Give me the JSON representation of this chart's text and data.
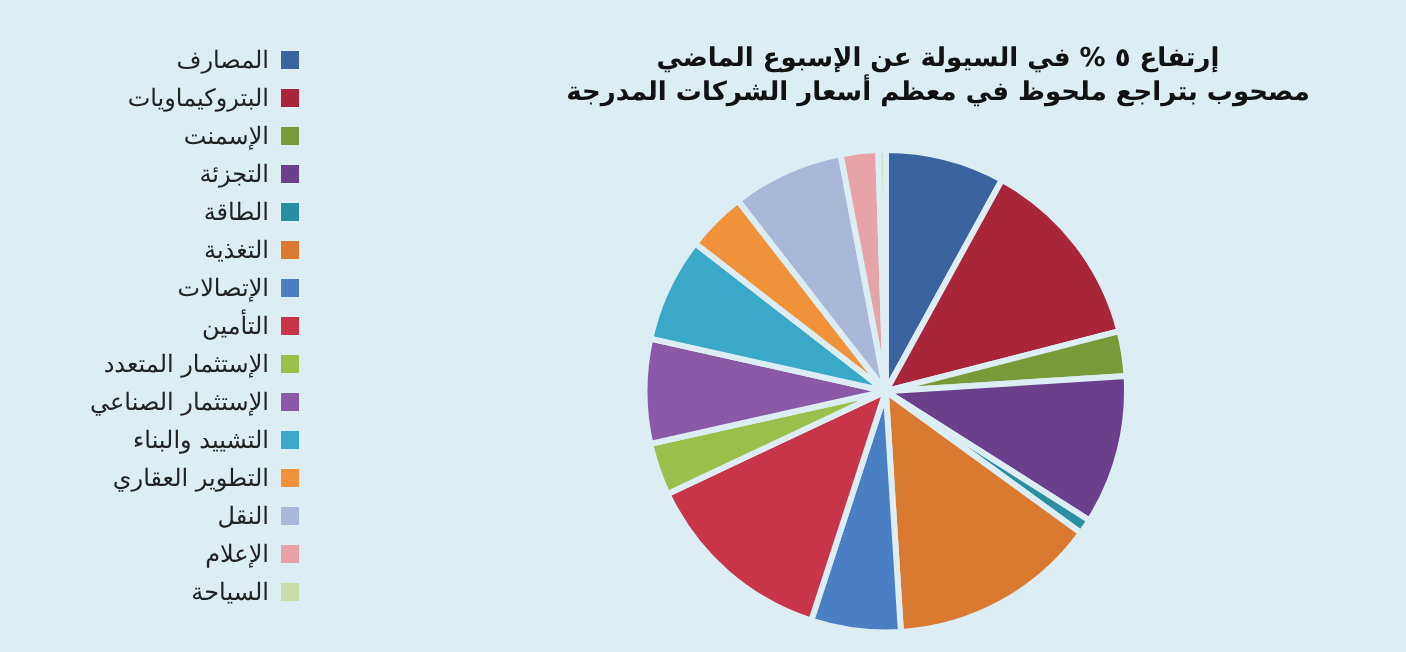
{
  "chart_data": {
    "type": "pie",
    "title": "إرتفاع ٥ % في السيولة عن الإسبوع الماضي",
    "subtitle": "مصحوب بتراجع ملحوظ في معظم أسعار الشركات المدرجة",
    "categories": [
      "المصارف",
      "البتروكيماويات",
      "الإسمنت",
      "التجزئة",
      "الطاقة",
      "التغذية",
      "الإتصالات",
      "التأمين",
      "الإستثمار المتعدد",
      "الإستثمار الصناعي",
      "التشييد والبناء",
      "التطوير العقاري",
      "النقل",
      "الإعلام",
      "السياحة"
    ],
    "values": [
      8,
      13,
      3,
      10,
      1,
      14,
      6,
      13,
      3.5,
      7,
      7,
      4,
      7.5,
      2.5,
      0.5
    ],
    "colors": [
      "#3a64a0",
      "#a8253a",
      "#7a9a3a",
      "#6a3f8c",
      "#2a8fa0",
      "#d97a30",
      "#4a7fc4",
      "#c8354a",
      "#9abf4a",
      "#8a5aa8",
      "#3aa8c8",
      "#f0923a",
      "#aab8d8",
      "#e6a4a8",
      "#c8dca8"
    ],
    "legend": "left"
  }
}
